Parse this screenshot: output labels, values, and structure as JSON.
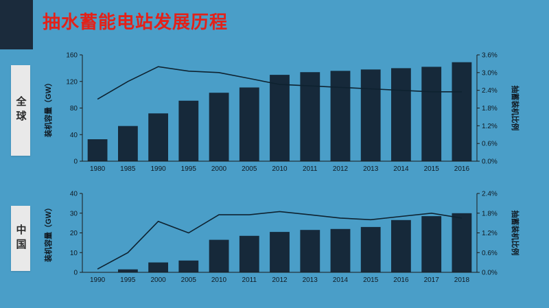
{
  "slide": {
    "title": "抽水蓄能电站发展历程",
    "background_color": "#4A9EC8",
    "title_color": "#E32119",
    "bar_color": "#16293A",
    "line_color": "#0E2230"
  },
  "chart_data": [
    {
      "type": "bar",
      "name": "global-pumped-storage",
      "side_label": "全球",
      "categories": [
        "1980",
        "1985",
        "1990",
        "1995",
        "2000",
        "2005",
        "2010",
        "2011",
        "2012",
        "2013",
        "2014",
        "2015",
        "2016"
      ],
      "series": [
        {
          "name": "装机容量",
          "type": "bar",
          "axis": "left",
          "values": [
            33,
            53,
            72,
            91,
            103,
            111,
            130,
            134,
            136,
            138,
            140,
            142,
            149
          ]
        },
        {
          "name": "抽蓄装机比例",
          "type": "line",
          "axis": "right",
          "values": [
            2.1,
            2.7,
            3.2,
            3.05,
            3.0,
            2.8,
            2.6,
            2.55,
            2.5,
            2.45,
            2.4,
            2.35,
            2.35
          ]
        }
      ],
      "ylabel_left": "装机容量（GW）",
      "ylabel_right": "抽蓄装机比例",
      "ylim_left": [
        0,
        160
      ],
      "yticks_left": [
        0,
        40,
        80,
        120,
        160
      ],
      "ylim_right": [
        0,
        3.6
      ],
      "yticks_right": [
        0,
        0.6,
        1.2,
        1.8,
        2.4,
        3.0,
        3.6
      ],
      "grid": false,
      "legend": "none"
    },
    {
      "type": "bar",
      "name": "china-pumped-storage",
      "side_label": "中国",
      "categories": [
        "1990",
        "1995",
        "2000",
        "2005",
        "2010",
        "2011",
        "2012",
        "2013",
        "2014",
        "2015",
        "2016",
        "2017",
        "2018"
      ],
      "series": [
        {
          "name": "装机容量",
          "type": "bar",
          "axis": "left",
          "values": [
            0,
            1.5,
            5,
            6,
            16.5,
            18.5,
            20.5,
            21.5,
            22,
            23,
            26.5,
            28.5,
            30
          ]
        },
        {
          "name": "抽蓄装机比例",
          "type": "line",
          "axis": "right",
          "values": [
            0.1,
            0.6,
            1.55,
            1.2,
            1.75,
            1.75,
            1.85,
            1.75,
            1.65,
            1.6,
            1.7,
            1.8,
            1.65
          ]
        }
      ],
      "ylabel_left": "装机容量（GW）",
      "ylabel_right": "抽蓄装机比例",
      "ylim_left": [
        0,
        40
      ],
      "yticks_left": [
        0,
        10,
        20,
        30,
        40
      ],
      "ylim_right": [
        0,
        2.4
      ],
      "yticks_right": [
        0,
        0.6,
        1.2,
        1.8,
        2.4
      ],
      "grid": false,
      "legend": "none"
    }
  ]
}
